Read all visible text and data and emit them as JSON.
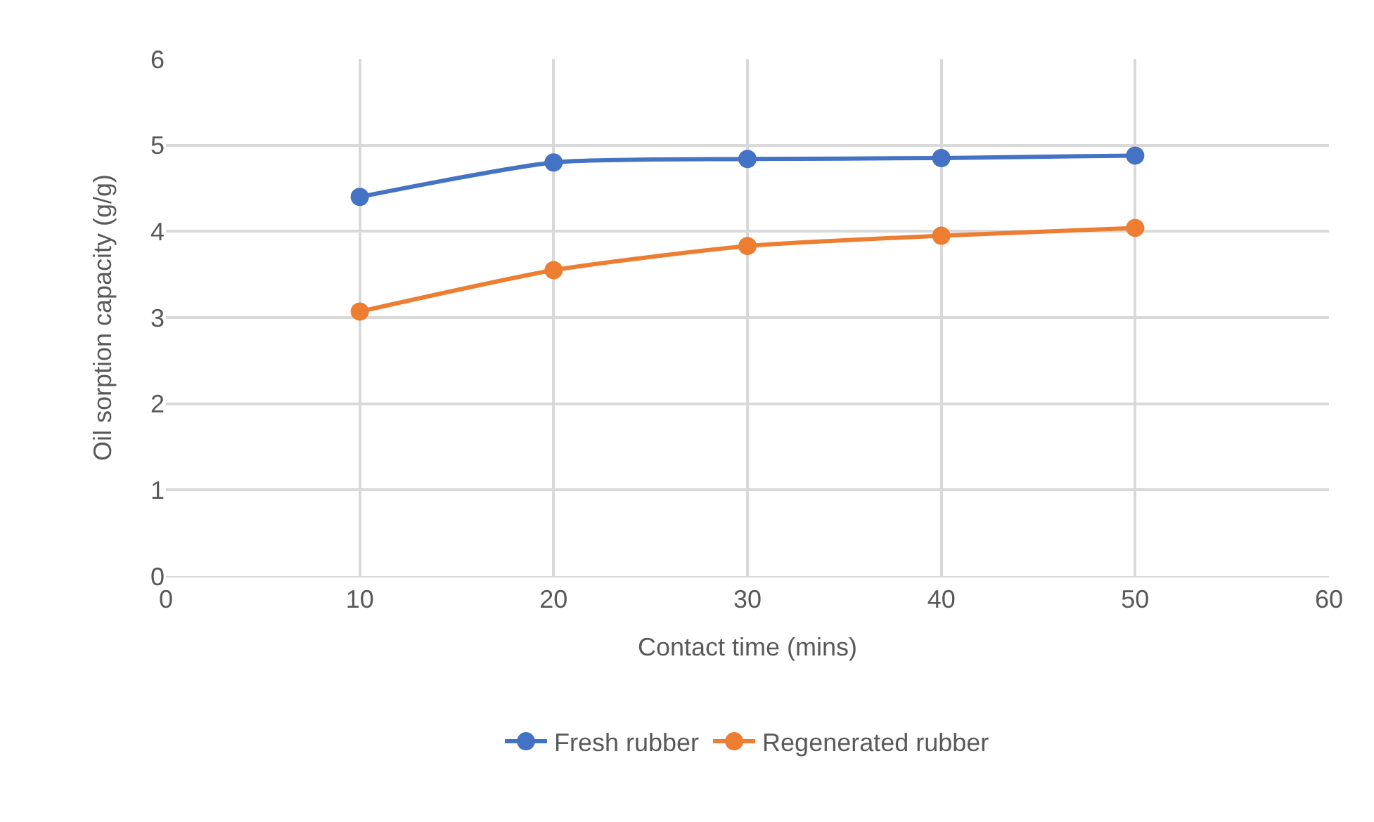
{
  "chart_data": {
    "type": "line",
    "xlabel": "Contact time (mins)",
    "ylabel": "Oil sorption capacity (g/g)",
    "x": [
      10,
      20,
      30,
      40,
      50
    ],
    "series": [
      {
        "name": "Fresh rubber",
        "color": "#4472c4",
        "values": [
          4.4,
          4.8,
          4.84,
          4.85,
          4.88
        ]
      },
      {
        "name": "Regenerated rubber",
        "color": "#ed7d31",
        "values": [
          3.07,
          3.55,
          3.83,
          3.95,
          4.04
        ]
      }
    ],
    "xlim": [
      0,
      60
    ],
    "xticks": [
      0,
      10,
      20,
      30,
      40,
      50,
      60
    ],
    "ylim": [
      0,
      6
    ],
    "yticks": [
      0,
      1,
      2,
      3,
      4,
      5,
      6
    ],
    "grid": true,
    "legend": "bottom",
    "marker": "circle",
    "line_style": "solid"
  }
}
